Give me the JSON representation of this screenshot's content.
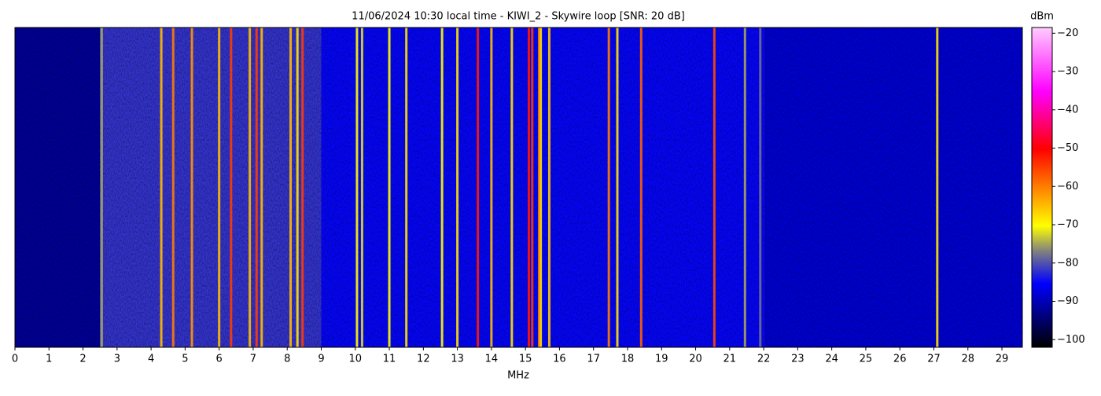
{
  "chart_data": {
    "type": "waterfall",
    "title": "11/06/2024 10:30 local time - KIWI_2 - Skywire loop [SNR: 20 dB]",
    "x_label": "MHz",
    "colorbar_label": "dBm",
    "xlim": [
      0,
      29.6
    ],
    "xticks": [
      0,
      1,
      2,
      3,
      4,
      5,
      6,
      7,
      8,
      9,
      10,
      11,
      12,
      13,
      14,
      15,
      16,
      17,
      18,
      19,
      20,
      21,
      22,
      23,
      24,
      25,
      26,
      27,
      28,
      29
    ],
    "clim": [
      -102,
      -18.5
    ],
    "cticks": [
      {
        "value": -20,
        "label": "−20"
      },
      {
        "value": -30,
        "label": "−30"
      },
      {
        "value": -40,
        "label": "−40"
      },
      {
        "value": -50,
        "label": "−50"
      },
      {
        "value": -60,
        "label": "−60"
      },
      {
        "value": -70,
        "label": "−70"
      },
      {
        "value": -80,
        "label": "−80"
      },
      {
        "value": -90,
        "label": "−90"
      },
      {
        "value": -100,
        "label": "−100"
      }
    ],
    "colormap": [
      "#000000",
      "#0000ff",
      "#808080",
      "#ffff00",
      "#ff0000",
      "#ff00ff",
      "#ffccff"
    ],
    "bands": {
      "starts": [
        0,
        2.5,
        9,
        22
      ],
      "ends": [
        2.5,
        9,
        22,
        29.6
      ],
      "values": [
        -92,
        -82,
        -85,
        -88
      ]
    },
    "signals": {
      "x": [
        2.55,
        4.3,
        4.65,
        5.2,
        6.0,
        6.35,
        6.9,
        7.1,
        7.25,
        8.1,
        8.3,
        8.45,
        10.05,
        10.2,
        11.0,
        11.5,
        12.55,
        13.0,
        13.6,
        14.0,
        14.6,
        15.1,
        15.2,
        15.4,
        15.45,
        15.7,
        17.45,
        17.7,
        18.4,
        20.55,
        21.45,
        21.9,
        27.1
      ],
      "values": [
        -75,
        -65,
        -60,
        -62,
        -65,
        -55,
        -65,
        -55,
        -65,
        -65,
        -68,
        -55,
        -70,
        -72,
        -70,
        -68,
        -70,
        -68,
        -52,
        -65,
        -68,
        -52,
        -55,
        -60,
        -68,
        -66,
        -60,
        -68,
        -58,
        -56,
        -75,
        -78,
        -68
      ]
    }
  }
}
